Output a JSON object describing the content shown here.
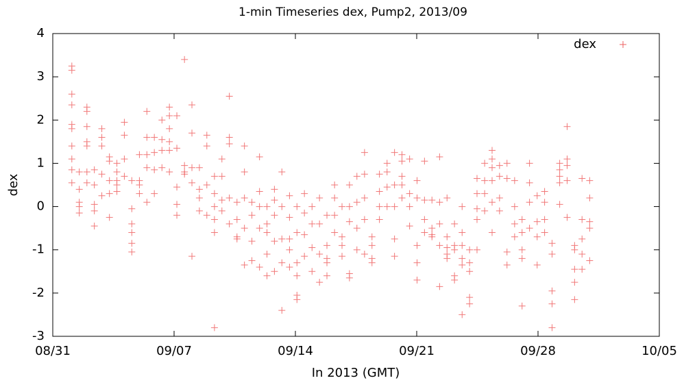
{
  "chart_data": {
    "type": "scatter",
    "title": "1-min Timeseries dex, Pump2, 2013/09",
    "x_label": "In 2013 (GMT)",
    "y_label": "dex",
    "xlim": [
      0,
      35
    ],
    "xticks": [
      {
        "value": 0,
        "label": "08/31"
      },
      {
        "value": 7,
        "label": "09/07"
      },
      {
        "value": 14,
        "label": "09/14"
      },
      {
        "value": 21,
        "label": "09/21"
      },
      {
        "value": 28,
        "label": "09/28"
      },
      {
        "value": 35,
        "label": "10/05"
      }
    ],
    "ylim": [
      -3,
      4
    ],
    "yticks": [
      -3,
      -2,
      -1,
      0,
      1,
      2,
      3,
      4
    ],
    "legend": "top-right",
    "series": [
      {
        "name": "dex",
        "color": "#ee5f5f",
        "x": [
          1.1,
          1.1,
          1.1,
          1.1,
          1.1,
          1.1,
          1.1,
          1.1,
          1.1,
          1.1,
          1.53,
          1.53,
          1.53,
          1.53,
          1.53,
          1.97,
          1.97,
          1.97,
          1.97,
          1.97,
          1.97,
          1.97,
          2.4,
          2.4,
          2.4,
          2.4,
          2.4,
          2.83,
          2.83,
          2.83,
          2.83,
          2.83,
          3.27,
          3.27,
          3.27,
          3.27,
          3.27,
          3.7,
          3.7,
          3.7,
          3.7,
          3.7,
          4.13,
          4.13,
          4.13,
          4.13,
          4.56,
          4.56,
          4.56,
          4.56,
          4.56,
          4.56,
          5.0,
          5.0,
          5.0,
          5.0,
          5.43,
          5.43,
          5.43,
          5.43,
          5.43,
          5.86,
          5.86,
          5.86,
          5.86,
          6.3,
          6.3,
          6.3,
          6.3,
          6.73,
          6.73,
          6.73,
          6.73,
          6.73,
          6.73,
          7.16,
          7.16,
          7.16,
          7.16,
          7.16,
          7.6,
          7.6,
          7.6,
          7.6,
          8.03,
          8.03,
          8.03,
          8.03,
          8.03,
          8.46,
          8.46,
          8.46,
          8.46,
          8.89,
          8.89,
          8.89,
          8.89,
          9.33,
          9.33,
          9.33,
          9.33,
          9.33,
          9.33,
          9.76,
          9.76,
          9.76,
          9.76,
          10.19,
          10.19,
          10.19,
          10.19,
          10.19,
          10.63,
          10.63,
          10.63,
          10.63,
          11.06,
          11.06,
          11.06,
          11.06,
          11.06,
          11.49,
          11.49,
          11.49,
          11.49,
          11.93,
          11.93,
          11.93,
          11.93,
          11.93,
          12.36,
          12.36,
          12.36,
          12.36,
          12.36,
          12.79,
          12.79,
          12.79,
          12.79,
          12.79,
          13.22,
          13.22,
          13.22,
          13.22,
          13.22,
          13.66,
          13.66,
          13.66,
          13.66,
          13.66,
          14.09,
          14.09,
          14.09,
          14.09,
          14.09,
          14.09,
          14.52,
          14.52,
          14.52,
          14.52,
          14.96,
          14.96,
          14.96,
          14.96,
          15.39,
          15.39,
          15.39,
          15.39,
          15.82,
          15.82,
          15.82,
          15.82,
          15.82,
          16.26,
          16.26,
          16.26,
          16.26,
          16.69,
          16.69,
          16.69,
          16.69,
          17.12,
          17.12,
          17.12,
          17.12,
          17.12,
          17.55,
          17.55,
          17.55,
          17.55,
          17.99,
          17.99,
          17.99,
          17.99,
          17.99,
          18.42,
          18.42,
          18.42,
          18.42,
          18.85,
          18.85,
          18.85,
          18.85,
          19.29,
          19.29,
          19.29,
          19.29,
          19.72,
          19.72,
          19.72,
          19.72,
          19.72,
          20.15,
          20.15,
          20.15,
          20.15,
          20.15,
          20.59,
          20.59,
          20.59,
          20.59,
          21.02,
          21.02,
          21.02,
          21.02,
          21.02,
          21.45,
          21.45,
          21.45,
          21.45,
          21.88,
          21.88,
          21.88,
          21.88,
          22.32,
          22.32,
          22.32,
          22.32,
          22.32,
          22.75,
          22.75,
          22.75,
          22.75,
          22.75,
          23.18,
          23.18,
          23.18,
          23.18,
          23.18,
          23.62,
          23.62,
          23.62,
          23.62,
          23.62,
          23.62,
          24.05,
          24.05,
          24.05,
          24.05,
          24.05,
          24.48,
          24.48,
          24.48,
          24.48,
          24.48,
          24.92,
          24.92,
          24.92,
          24.92,
          25.35,
          25.35,
          25.35,
          25.35,
          25.35,
          25.35,
          25.78,
          25.78,
          25.78,
          25.78,
          26.21,
          26.21,
          26.21,
          26.21,
          26.65,
          26.65,
          26.65,
          26.65,
          27.08,
          27.08,
          27.08,
          27.08,
          27.08,
          27.51,
          27.51,
          27.51,
          27.51,
          27.95,
          27.95,
          27.95,
          27.95,
          28.38,
          28.38,
          28.38,
          28.38,
          28.81,
          28.81,
          28.81,
          28.81,
          28.81,
          29.25,
          29.25,
          29.25,
          29.25,
          29.25,
          29.68,
          29.68,
          29.68,
          29.68,
          29.68,
          30.11,
          30.11,
          30.11,
          30.11,
          30.11,
          30.54,
          30.54,
          30.54,
          30.54,
          30.54,
          30.98,
          30.98,
          30.98,
          30.98,
          30.98
        ],
        "values": [
          3.25,
          3.15,
          2.6,
          2.35,
          1.9,
          1.8,
          1.4,
          1.1,
          0.85,
          0.55,
          0.8,
          0.4,
          0.1,
          0.0,
          -0.15,
          2.3,
          2.2,
          1.85,
          1.5,
          1.4,
          0.8,
          0.55,
          0.85,
          0.5,
          0.05,
          -0.1,
          -0.45,
          1.8,
          1.4,
          1.6,
          0.75,
          0.25,
          1.15,
          1.05,
          0.6,
          0.3,
          -0.25,
          1.0,
          0.8,
          0.5,
          0.35,
          0.6,
          1.95,
          1.65,
          1.1,
          0.7,
          0.6,
          -0.05,
          -0.4,
          -0.6,
          -0.85,
          -1.05,
          1.2,
          0.6,
          0.5,
          0.3,
          2.2,
          1.6,
          1.2,
          0.9,
          0.1,
          1.6,
          1.25,
          0.85,
          0.3,
          2.0,
          1.55,
          1.3,
          0.9,
          2.3,
          2.1,
          1.8,
          1.5,
          1.3,
          0.8,
          2.1,
          1.35,
          0.45,
          0.05,
          -0.2,
          3.4,
          0.95,
          0.8,
          0.75,
          2.35,
          1.7,
          0.9,
          0.55,
          -1.15,
          0.9,
          0.4,
          0.2,
          -0.1,
          1.65,
          1.4,
          0.5,
          -0.2,
          0.7,
          0.3,
          0.0,
          -0.3,
          -0.6,
          -2.8,
          1.1,
          0.7,
          0.15,
          -0.1,
          2.55,
          1.6,
          1.45,
          0.2,
          -0.4,
          0.1,
          -0.3,
          -0.7,
          -0.75,
          1.4,
          0.8,
          0.2,
          -0.5,
          -1.35,
          0.1,
          -0.2,
          -0.8,
          -1.25,
          1.15,
          0.35,
          0.0,
          -0.5,
          -1.4,
          0.0,
          -0.4,
          -0.6,
          -1.1,
          -1.6,
          0.4,
          0.15,
          -0.2,
          -0.8,
          -1.5,
          0.8,
          0.0,
          -0.75,
          -1.3,
          -2.4,
          0.25,
          -0.25,
          -0.75,
          -1.0,
          -1.4,
          0.0,
          -0.6,
          -1.3,
          -1.6,
          -2.05,
          -2.15,
          0.3,
          -0.15,
          -0.65,
          -1.15,
          0.0,
          -0.4,
          -0.95,
          -1.5,
          0.2,
          -0.4,
          -1.1,
          -1.75,
          -0.2,
          -0.9,
          -1.2,
          -1.3,
          -1.6,
          0.5,
          0.2,
          -0.2,
          -0.6,
          0.0,
          -0.7,
          -0.9,
          -1.15,
          0.5,
          0.0,
          -0.35,
          -1.55,
          -1.65,
          0.7,
          0.1,
          -0.5,
          -1.0,
          1.25,
          0.75,
          0.2,
          -0.3,
          -1.1,
          -0.7,
          -0.9,
          -1.2,
          -1.3,
          0.75,
          0.35,
          0.0,
          -0.3,
          1.0,
          0.8,
          0.45,
          0.0,
          1.25,
          0.5,
          0.0,
          -0.75,
          -1.15,
          1.2,
          1.05,
          0.7,
          0.5,
          0.2,
          1.1,
          0.3,
          0.0,
          -0.45,
          0.6,
          0.2,
          -0.9,
          -1.3,
          -1.7,
          1.05,
          0.15,
          -0.3,
          -0.6,
          -0.65,
          -0.5,
          -0.7,
          0.15,
          1.15,
          0.1,
          -0.4,
          -0.9,
          -1.85,
          0.2,
          -0.7,
          -0.95,
          -1.1,
          -1.2,
          -0.4,
          -0.9,
          -1.0,
          -1.6,
          -1.7,
          0.0,
          -0.6,
          -0.9,
          -1.2,
          -1.35,
          -2.5,
          -1.0,
          -1.3,
          -1.5,
          -2.1,
          -2.25,
          0.65,
          0.3,
          -0.05,
          -0.3,
          -1.0,
          1.0,
          0.6,
          0.3,
          -0.1,
          1.3,
          1.1,
          0.9,
          0.6,
          0.1,
          -0.6,
          0.95,
          0.7,
          0.2,
          -0.1,
          1.0,
          0.65,
          -1.05,
          -1.35,
          0.6,
          0.0,
          -0.4,
          -0.7,
          -0.3,
          -0.6,
          -1.0,
          -1.2,
          -2.3,
          1.0,
          0.55,
          0.1,
          -0.5,
          0.25,
          -0.35,
          -0.7,
          -1.35,
          0.35,
          0.1,
          -0.3,
          -0.6,
          -0.85,
          -1.1,
          -1.95,
          -2.25,
          -2.8,
          1.0,
          0.85,
          0.7,
          0.55,
          0.05,
          1.85,
          1.1,
          0.95,
          0.6,
          -0.25,
          -0.9,
          -1.0,
          -1.45,
          -1.75,
          -2.15,
          0.65,
          -0.3,
          -0.75,
          -1.1,
          -1.45,
          0.6,
          0.2,
          -0.35,
          -0.5,
          -1.25
        ]
      }
    ]
  }
}
